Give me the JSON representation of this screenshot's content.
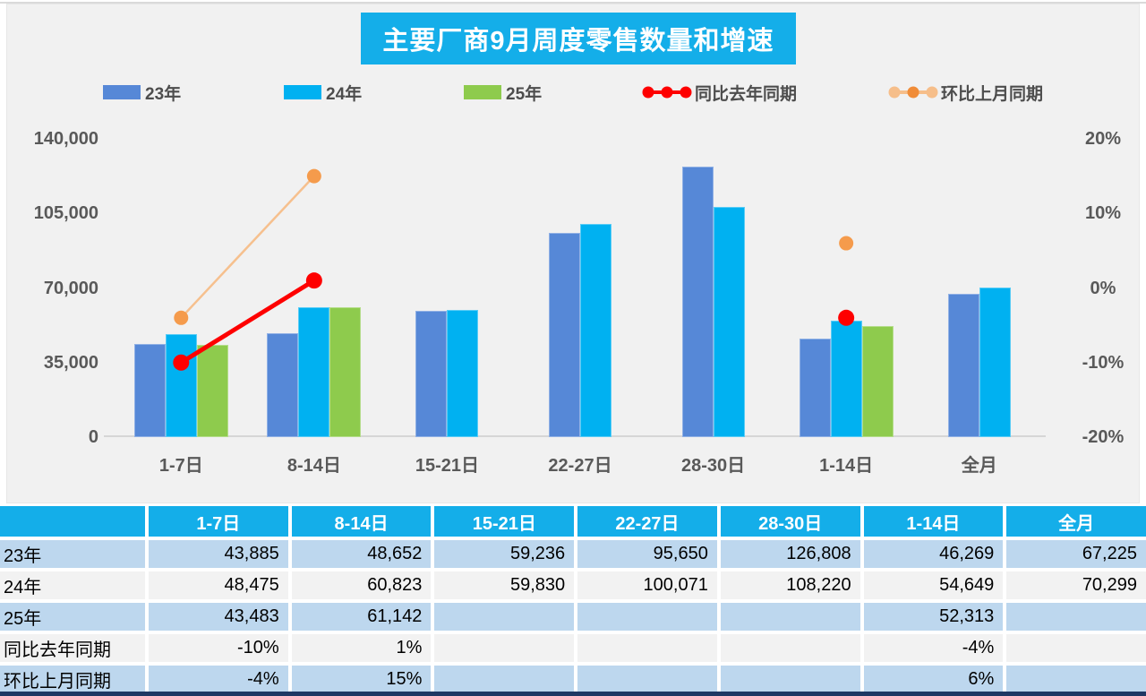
{
  "title": "主要厂商9月周度零售数量和增速",
  "colors": {
    "title_bg": "#14aee9",
    "header_bg": "#14aee9",
    "bar_23": "#5688d7",
    "bar_24": "#00b1f1",
    "bar_25": "#8ecb4d",
    "yoy_line": "#fe0000",
    "yoy_marker": "#fe0000",
    "mom_line": "#f6c08e",
    "mom_marker": "#f59b4c",
    "row_blue": "#bdd7ee",
    "row_gray": "#f2f2f2",
    "axis_text": "#595959",
    "bottom_bar": "#1f3864"
  },
  "legend": [
    {
      "label": "23年",
      "type": "rect",
      "color": "#5688d7"
    },
    {
      "label": "24年",
      "type": "rect",
      "color": "#00b1f1"
    },
    {
      "label": "25年",
      "type": "rect",
      "color": "#8ecb4d"
    },
    {
      "label": "同比去年同期",
      "type": "line",
      "marker_color": "#fe0000",
      "line_color": "#fe0000"
    },
    {
      "label": "环比上月同期",
      "type": "line",
      "marker_color": "#f08c38",
      "line_color": "#f6be8a"
    }
  ],
  "chart_data": {
    "type": "bar+line",
    "title": "主要厂商9月周度零售数量和增速",
    "categories": [
      "1-7日",
      "8-14日",
      "15-21日",
      "22-27日",
      "28-30日",
      "1-14日",
      "全月"
    ],
    "bar_series": [
      {
        "name": "23年",
        "color": "#5688d7",
        "values": [
          43885,
          48652,
          59236,
          95650,
          126808,
          46269,
          67225
        ]
      },
      {
        "name": "24年",
        "color": "#00b1f1",
        "values": [
          48475,
          60823,
          59830,
          100071,
          108220,
          54649,
          70299
        ]
      },
      {
        "name": "25年",
        "color": "#8ecb4d",
        "values": [
          43483,
          61142,
          null,
          null,
          null,
          52313,
          null
        ]
      }
    ],
    "line_series": [
      {
        "name": "同比去年同期",
        "marker_color": "#fe0000",
        "line_color": "#fe0000",
        "width": 5,
        "r": 9,
        "values": [
          -10,
          1,
          null,
          null,
          null,
          -4,
          null
        ]
      },
      {
        "name": "环比上月同期",
        "marker_color": "#f59b4c",
        "line_color": "#f6c08e",
        "width": 2.5,
        "r": 8,
        "values": [
          -4,
          15,
          null,
          null,
          null,
          6,
          null
        ]
      }
    ],
    "left_axis": {
      "tick_labels": [
        "140,000",
        "105,000",
        "70,000",
        "35,000",
        "0"
      ],
      "tick_values": [
        140000,
        105000,
        70000,
        35000,
        0
      ],
      "min": 0,
      "max": 140000
    },
    "right_axis": {
      "tick_labels": [
        "20%",
        "10%",
        "0%",
        "-10%",
        "-20%"
      ],
      "tick_values": [
        20,
        10,
        0,
        -10,
        -20
      ],
      "min": -20,
      "max": 20
    },
    "grid": false,
    "legend_position": "top"
  },
  "table": {
    "header": [
      "",
      "1-7日",
      "8-14日",
      "15-21日",
      "22-27日",
      "28-30日",
      "1-14日",
      "全月"
    ],
    "rows": [
      {
        "label": "23年",
        "cells": [
          "43,885",
          "48,652",
          "59,236",
          "95,650",
          "126,808",
          "46,269",
          "67,225"
        ]
      },
      {
        "label": "24年",
        "cells": [
          "48,475",
          "60,823",
          "59,830",
          "100,071",
          "108,220",
          "54,649",
          "70,299"
        ]
      },
      {
        "label": "25年",
        "cells": [
          "43,483",
          "61,142",
          "",
          "",
          "",
          "52,313",
          ""
        ]
      },
      {
        "label": "同比去年同期",
        "cells": [
          "-10%",
          "1%",
          "",
          "",
          "",
          "-4%",
          ""
        ]
      },
      {
        "label": "环比上月同期",
        "cells": [
          "-4%",
          "15%",
          "",
          "",
          "",
          "6%",
          ""
        ]
      }
    ]
  }
}
